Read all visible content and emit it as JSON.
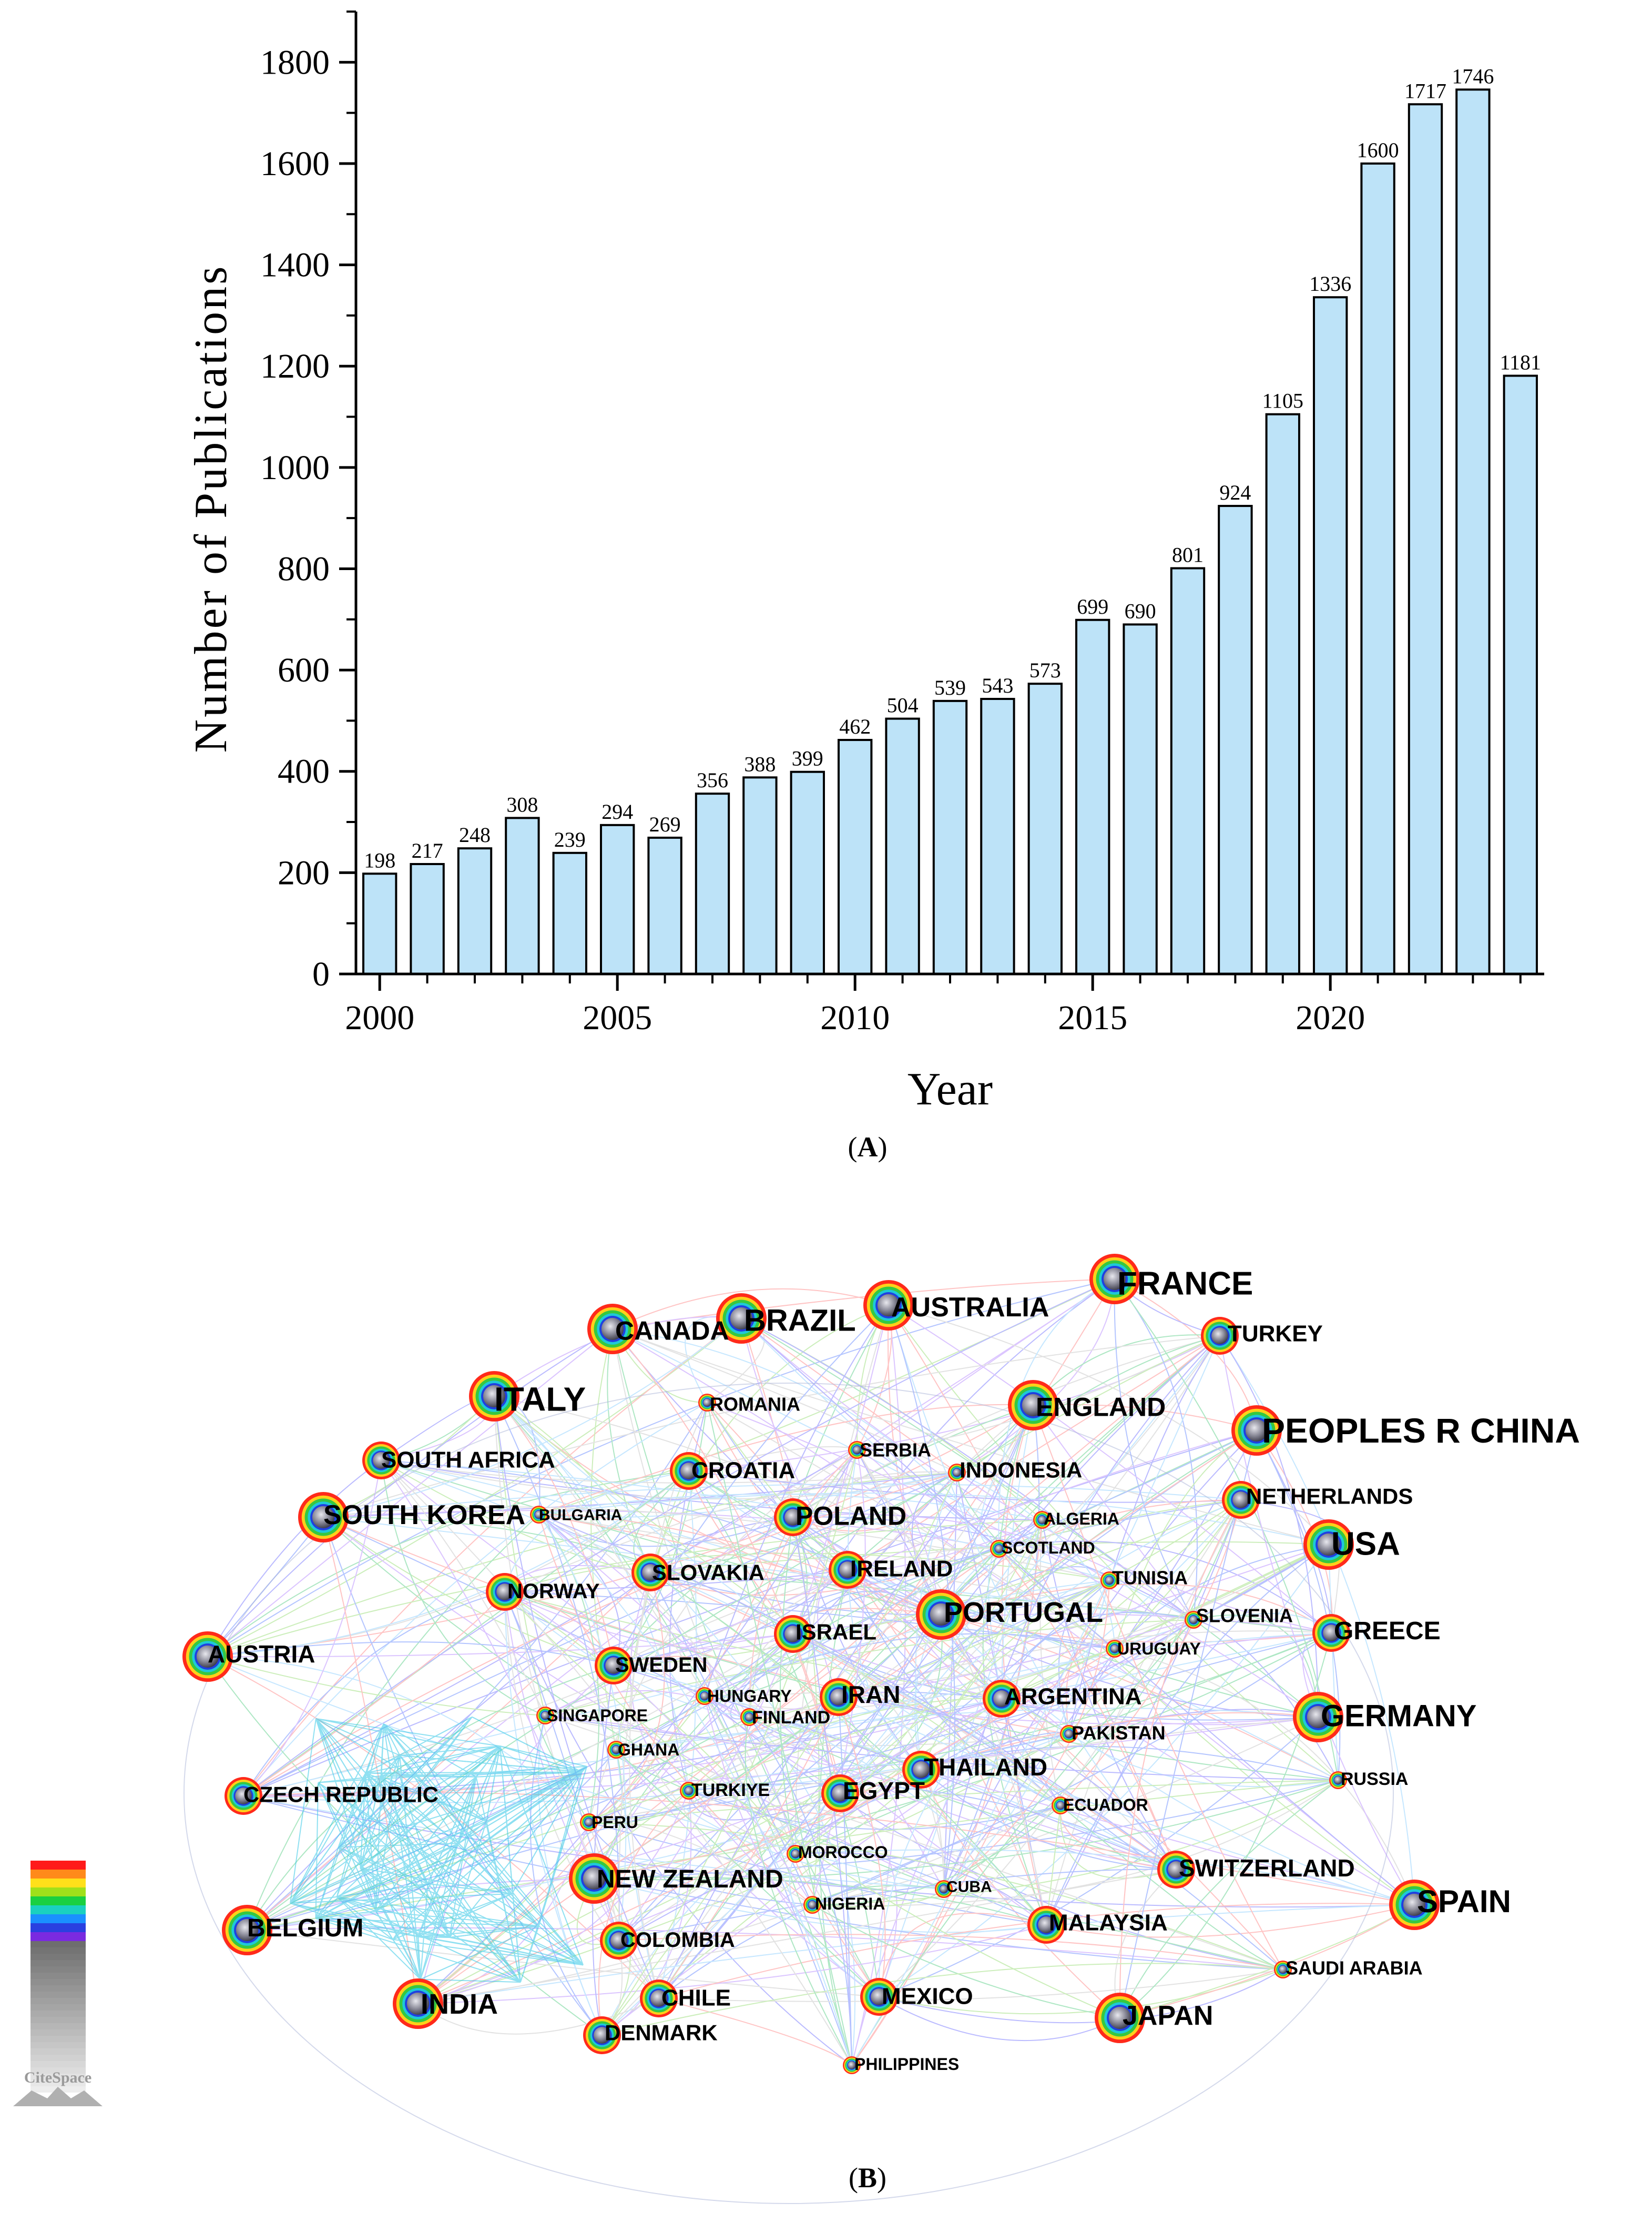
{
  "panel_a": {
    "caption": "A"
  },
  "panel_b": {
    "caption": "B",
    "watermark_text": "CiteSpace"
  },
  "chart_data": [
    {
      "type": "bar",
      "title": "",
      "xlabel": "Year",
      "ylabel": "Number of Publications",
      "categories": [
        "2000",
        "2001",
        "2002",
        "2003",
        "2004",
        "2005",
        "2006",
        "2007",
        "2008",
        "2009",
        "2010",
        "2011",
        "2012",
        "2013",
        "2014",
        "2015",
        "2016",
        "2017",
        "2018",
        "2019",
        "2020",
        "2021",
        "2022",
        "2023",
        "2024"
      ],
      "values": [
        198,
        217,
        248,
        308,
        239,
        294,
        269,
        356,
        388,
        399,
        462,
        504,
        539,
        543,
        573,
        699,
        690,
        801,
        924,
        1105,
        1336,
        1600,
        1717,
        1746,
        1181
      ],
      "x_ticks": [
        "2000",
        "2005",
        "2010",
        "2015",
        "2020"
      ],
      "ylim": [
        0,
        1900
      ],
      "y_ticks": [
        0,
        200,
        400,
        600,
        800,
        1000,
        1200,
        1400,
        1600,
        1800
      ],
      "bar_color": "#bde3f8",
      "bar_edge_color": "#000000",
      "grid": false,
      "data_labels": true
    },
    {
      "type": "network",
      "title": "",
      "nodes": [
        {
          "label": "FRANCE",
          "size": "large"
        },
        {
          "label": "AUSTRALIA",
          "size": "large"
        },
        {
          "label": "BRAZIL",
          "size": "large"
        },
        {
          "label": "CANADA",
          "size": "large"
        },
        {
          "label": "TURKEY",
          "size": "medium"
        },
        {
          "label": "ITALY",
          "size": "large"
        },
        {
          "label": "ROMANIA",
          "size": "small"
        },
        {
          "label": "ENGLAND",
          "size": "large"
        },
        {
          "label": "PEOPLES R CHINA",
          "size": "large"
        },
        {
          "label": "SOUTH AFRICA",
          "size": "medium"
        },
        {
          "label": "CROATIA",
          "size": "medium"
        },
        {
          "label": "SERBIA",
          "size": "small"
        },
        {
          "label": "INDONESIA",
          "size": "small"
        },
        {
          "label": "NETHERLANDS",
          "size": "medium"
        },
        {
          "label": "SOUTH KOREA",
          "size": "large"
        },
        {
          "label": "BULGARIA",
          "size": "small"
        },
        {
          "label": "POLAND",
          "size": "medium"
        },
        {
          "label": "ALGERIA",
          "size": "small"
        },
        {
          "label": "USA",
          "size": "large"
        },
        {
          "label": "SCOTLAND",
          "size": "small"
        },
        {
          "label": "SLOVAKIA",
          "size": "medium"
        },
        {
          "label": "IRELAND",
          "size": "medium"
        },
        {
          "label": "NORWAY",
          "size": "medium"
        },
        {
          "label": "TUNISIA",
          "size": "small"
        },
        {
          "label": "PORTUGAL",
          "size": "large"
        },
        {
          "label": "SLOVENIA",
          "size": "small"
        },
        {
          "label": "GREECE",
          "size": "medium"
        },
        {
          "label": "AUSTRIA",
          "size": "large"
        },
        {
          "label": "ISRAEL",
          "size": "medium"
        },
        {
          "label": "SWEDEN",
          "size": "medium"
        },
        {
          "label": "URUGUAY",
          "size": "small"
        },
        {
          "label": "HUNGARY",
          "size": "small"
        },
        {
          "label": "IRAN",
          "size": "medium"
        },
        {
          "label": "ARGENTINA",
          "size": "medium"
        },
        {
          "label": "GERMANY",
          "size": "large"
        },
        {
          "label": "SINGAPORE",
          "size": "small"
        },
        {
          "label": "FINLAND",
          "size": "small"
        },
        {
          "label": "PAKISTAN",
          "size": "small"
        },
        {
          "label": "GHANA",
          "size": "small"
        },
        {
          "label": "THAILAND",
          "size": "medium"
        },
        {
          "label": "CZECH REPUBLIC",
          "size": "medium"
        },
        {
          "label": "TURKIYE",
          "size": "small"
        },
        {
          "label": "EGYPT",
          "size": "medium"
        },
        {
          "label": "RUSSIA",
          "size": "small"
        },
        {
          "label": "PERU",
          "size": "small"
        },
        {
          "label": "ECUADOR",
          "size": "small"
        },
        {
          "label": "MOROCCO",
          "size": "small"
        },
        {
          "label": "SWITZERLAND",
          "size": "medium"
        },
        {
          "label": "NEW ZEALAND",
          "size": "large"
        },
        {
          "label": "CUBA",
          "size": "small"
        },
        {
          "label": "SPAIN",
          "size": "large"
        },
        {
          "label": "NIGERIA",
          "size": "small"
        },
        {
          "label": "BELGIUM",
          "size": "large"
        },
        {
          "label": "COLOMBIA",
          "size": "medium"
        },
        {
          "label": "MALAYSIA",
          "size": "medium"
        },
        {
          "label": "SAUDI ARABIA",
          "size": "small"
        },
        {
          "label": "INDIA",
          "size": "large"
        },
        {
          "label": "CHILE",
          "size": "medium"
        },
        {
          "label": "MEXICO",
          "size": "medium"
        },
        {
          "label": "JAPAN",
          "size": "large"
        },
        {
          "label": "DENMARK",
          "size": "medium"
        },
        {
          "label": "PHILIPPINES",
          "size": "small"
        }
      ],
      "legend": "time-slice color scale (bottom-left)"
    }
  ]
}
